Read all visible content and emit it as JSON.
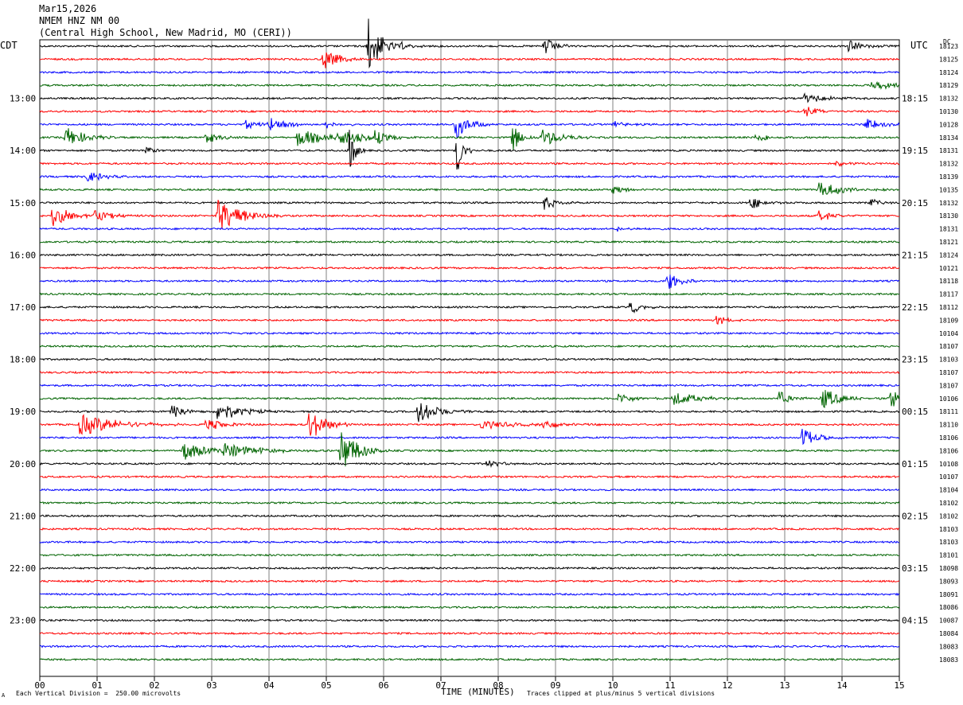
{
  "header": {
    "date": "Mar15,2026",
    "station": "NMEM HNZ NM 00",
    "location": "(Central High School, New Madrid, MO (CERI))"
  },
  "left_zone_label": "CDT",
  "right_zone_label": "UTC",
  "dc_label": "DC",
  "footer": {
    "scale_text": "Each Vertical Division =  250.00 microvolts",
    "xlabel": "TIME (MINUTES)",
    "clip_text": "Traces clipped at plus/minus 5 vertical divisions",
    "corner_mark": "A"
  },
  "colors": {
    "trace_cycle": [
      "#000000",
      "#ff0000",
      "#0000ff",
      "#006400"
    ],
    "grid": "#808080"
  },
  "chart_data": {
    "type": "line",
    "description_type": "helicorder",
    "xlabel": "TIME (MINUTES)",
    "xlim": [
      0,
      15
    ],
    "x_ticks": [
      "00",
      "01",
      "02",
      "03",
      "04",
      "05",
      "06",
      "07",
      "08",
      "09",
      "10",
      "11",
      "12",
      "13",
      "14",
      "15"
    ],
    "minutes_per_line": 15,
    "line_count": 48,
    "left_time_labels": [
      "13:00",
      "14:00",
      "15:00",
      "16:00",
      "17:00",
      "18:00",
      "19:00",
      "20:00",
      "21:00",
      "22:00",
      "23:00"
    ],
    "left_label_lines": [
      4,
      8,
      12,
      16,
      20,
      24,
      28,
      32,
      36,
      40,
      44
    ],
    "right_time_labels": [
      "18:15",
      "19:15",
      "20:15",
      "21:15",
      "22:15",
      "23:15",
      "00:15",
      "01:15",
      "02:15",
      "03:15",
      "04:15"
    ],
    "dc_offsets": [
      "18123",
      "18125",
      "18124",
      "18129",
      "18132",
      "10130",
      "10128",
      "18134",
      "18131",
      "18132",
      "18139",
      "10135",
      "18132",
      "18130",
      "18131",
      "18121",
      "18124",
      "10121",
      "18118",
      "18117",
      "18112",
      "18109",
      "10104",
      "18107",
      "18103",
      "18107",
      "18107",
      "10106",
      "18111",
      "18110",
      "18106",
      "18106",
      "10108",
      "10107",
      "18104",
      "18102",
      "18102",
      "18103",
      "18103",
      "18101",
      "18098",
      "18093",
      "18091",
      "18086",
      "10087",
      "18084",
      "18083",
      "18083"
    ],
    "events": [
      {
        "line": 0,
        "minute": 5.72,
        "amp": 40,
        "dur": 0.2
      },
      {
        "line": 0,
        "minute": 6.3,
        "amp": 5,
        "dur": 0.2
      },
      {
        "line": 0,
        "minute": 8.8,
        "amp": 14,
        "dur": 0.15
      },
      {
        "line": 0,
        "minute": 14.1,
        "amp": 8,
        "dur": 0.25
      },
      {
        "line": 1,
        "minute": 4.95,
        "amp": 14,
        "dur": 0.25
      },
      {
        "line": 3,
        "minute": 14.5,
        "amp": 7,
        "dur": 0.35
      },
      {
        "line": 4,
        "minute": 13.35,
        "amp": 7,
        "dur": 0.35
      },
      {
        "line": 5,
        "minute": 13.35,
        "amp": 8,
        "dur": 0.2
      },
      {
        "line": 6,
        "minute": 3.6,
        "amp": 6,
        "dur": 0.25
      },
      {
        "line": 6,
        "minute": 4.0,
        "amp": 9,
        "dur": 0.3
      },
      {
        "line": 6,
        "minute": 5.0,
        "amp": 6,
        "dur": 0.2
      },
      {
        "line": 6,
        "minute": 7.25,
        "amp": 20,
        "dur": 0.2
      },
      {
        "line": 6,
        "minute": 10.0,
        "amp": 4,
        "dur": 0.2
      },
      {
        "line": 6,
        "minute": 14.4,
        "amp": 8,
        "dur": 0.25
      },
      {
        "line": 7,
        "minute": 0.45,
        "amp": 14,
        "dur": 0.3
      },
      {
        "line": 7,
        "minute": 2.9,
        "amp": 7,
        "dur": 0.25
      },
      {
        "line": 7,
        "minute": 4.5,
        "amp": 12,
        "dur": 0.4
      },
      {
        "line": 7,
        "minute": 5.2,
        "amp": 10,
        "dur": 0.45
      },
      {
        "line": 7,
        "minute": 5.85,
        "amp": 12,
        "dur": 0.2
      },
      {
        "line": 7,
        "minute": 8.25,
        "amp": 18,
        "dur": 0.15
      },
      {
        "line": 7,
        "minute": 8.75,
        "amp": 12,
        "dur": 0.35
      },
      {
        "line": 7,
        "minute": 12.5,
        "amp": 6,
        "dur": 0.25
      },
      {
        "line": 8,
        "minute": 1.85,
        "amp": 6,
        "dur": 0.15
      },
      {
        "line": 8,
        "minute": 5.4,
        "amp": 30,
        "dur": 0.1
      },
      {
        "line": 8,
        "minute": 7.27,
        "amp": 35,
        "dur": 0.1
      },
      {
        "line": 9,
        "minute": 13.9,
        "amp": 4,
        "dur": 0.15
      },
      {
        "line": 10,
        "minute": 0.8,
        "amp": 8,
        "dur": 0.25
      },
      {
        "line": 11,
        "minute": 10.0,
        "amp": 6,
        "dur": 0.25
      },
      {
        "line": 11,
        "minute": 13.6,
        "amp": 10,
        "dur": 0.4
      },
      {
        "line": 12,
        "minute": 8.8,
        "amp": 9,
        "dur": 0.2
      },
      {
        "line": 12,
        "minute": 12.4,
        "amp": 9,
        "dur": 0.2
      },
      {
        "line": 12,
        "minute": 14.5,
        "amp": 6,
        "dur": 0.15
      },
      {
        "line": 13,
        "minute": 0.22,
        "amp": 14,
        "dur": 0.3
      },
      {
        "line": 13,
        "minute": 0.95,
        "amp": 8,
        "dur": 0.3
      },
      {
        "line": 13,
        "minute": 3.1,
        "amp": 22,
        "dur": 0.4
      },
      {
        "line": 13,
        "minute": 13.6,
        "amp": 8,
        "dur": 0.2
      },
      {
        "line": 14,
        "minute": 10.05,
        "amp": 4,
        "dur": 0.2
      },
      {
        "line": 18,
        "minute": 10.95,
        "amp": 12,
        "dur": 0.2
      },
      {
        "line": 20,
        "minute": 10.3,
        "amp": 8,
        "dur": 0.2
      },
      {
        "line": 21,
        "minute": 11.8,
        "amp": 6,
        "dur": 0.2
      },
      {
        "line": 27,
        "minute": 10.1,
        "amp": 7,
        "dur": 0.25
      },
      {
        "line": 27,
        "minute": 11.05,
        "amp": 9,
        "dur": 0.4
      },
      {
        "line": 27,
        "minute": 12.9,
        "amp": 10,
        "dur": 0.2
      },
      {
        "line": 27,
        "minute": 13.65,
        "amp": 14,
        "dur": 0.3
      },
      {
        "line": 27,
        "minute": 14.85,
        "amp": 14,
        "dur": 0.2
      },
      {
        "line": 28,
        "minute": 2.3,
        "amp": 10,
        "dur": 0.25
      },
      {
        "line": 28,
        "minute": 3.1,
        "amp": 14,
        "dur": 0.35
      },
      {
        "line": 28,
        "minute": 6.6,
        "amp": 14,
        "dur": 0.35
      },
      {
        "line": 29,
        "minute": 0.7,
        "amp": 14,
        "dur": 0.6
      },
      {
        "line": 29,
        "minute": 2.9,
        "amp": 8,
        "dur": 0.3
      },
      {
        "line": 29,
        "minute": 4.7,
        "amp": 22,
        "dur": 0.25
      },
      {
        "line": 29,
        "minute": 7.7,
        "amp": 6,
        "dur": 0.5
      },
      {
        "line": 29,
        "minute": 8.8,
        "amp": 5,
        "dur": 0.4
      },
      {
        "line": 30,
        "minute": 13.3,
        "amp": 12,
        "dur": 0.25
      },
      {
        "line": 31,
        "minute": 2.5,
        "amp": 12,
        "dur": 0.4
      },
      {
        "line": 31,
        "minute": 3.2,
        "amp": 10,
        "dur": 0.6
      },
      {
        "line": 31,
        "minute": 5.25,
        "amp": 28,
        "dur": 0.3
      },
      {
        "line": 32,
        "minute": 7.8,
        "amp": 6,
        "dur": 0.2
      }
    ]
  }
}
